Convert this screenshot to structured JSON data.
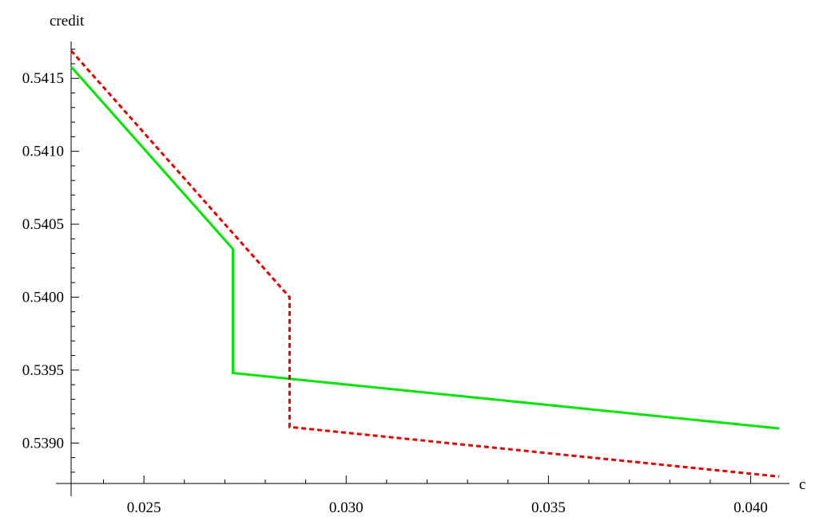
{
  "chart_data": {
    "type": "line",
    "xlabel": "c",
    "ylabel": "credit",
    "xlim": [
      0.0232,
      0.0408
    ],
    "ylim": [
      0.53875,
      0.54172
    ],
    "grid": false,
    "legend": "none",
    "x_ticks": [
      {
        "value": 0.025,
        "label": "0.025"
      },
      {
        "value": 0.03,
        "label": "0.030"
      },
      {
        "value": 0.035,
        "label": "0.035"
      },
      {
        "value": 0.04,
        "label": "0.040"
      }
    ],
    "y_ticks": [
      {
        "value": 0.539,
        "label": "0.5390"
      },
      {
        "value": 0.5395,
        "label": "0.5395"
      },
      {
        "value": 0.54,
        "label": "0.5400"
      },
      {
        "value": 0.5405,
        "label": "0.5405"
      },
      {
        "value": 0.541,
        "label": "0.5410"
      },
      {
        "value": 0.5415,
        "label": "0.5415"
      }
    ],
    "series": [
      {
        "color": "#00e600",
        "dash": "solid",
        "x": [
          0.0232,
          0.0272,
          0.0272,
          0.0407
        ],
        "y": [
          0.54158,
          0.54033,
          0.53948,
          0.5391
        ]
      },
      {
        "color": "#e60000",
        "dash": "dashed",
        "x": [
          0.0232,
          0.0286,
          0.0286,
          0.0407
        ],
        "y": [
          0.54169,
          0.54,
          0.53911,
          0.53877
        ]
      }
    ]
  }
}
